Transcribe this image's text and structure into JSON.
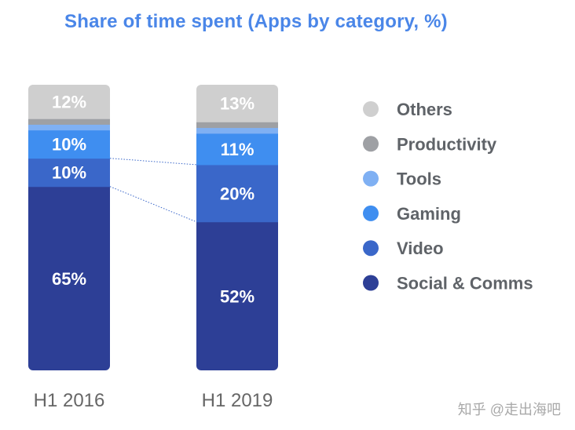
{
  "chart_data": {
    "type": "bar",
    "stacked": true,
    "title": "Share of time spent (Apps by category, %)",
    "categories": [
      "H1 2016",
      "H1 2019"
    ],
    "series": [
      {
        "name": "Social & Comms",
        "values": [
          65,
          52
        ],
        "labels": [
          "65%",
          "52%"
        ],
        "color": "#2d3f96"
      },
      {
        "name": "Video",
        "values": [
          10,
          20
        ],
        "labels": [
          "10%",
          "20%"
        ],
        "color": "#3a67c9"
      },
      {
        "name": "Gaming",
        "values": [
          10,
          11
        ],
        "labels": [
          "10%",
          "11%"
        ],
        "color": "#3f8ef0"
      },
      {
        "name": "Tools",
        "values": [
          2,
          2
        ],
        "labels": [
          "",
          ""
        ],
        "color": "#7fb0f3"
      },
      {
        "name": "Productivity",
        "values": [
          2,
          2
        ],
        "labels": [
          "",
          ""
        ],
        "color": "#9ea0a4"
      },
      {
        "name": "Others",
        "values": [
          12,
          13
        ],
        "labels": [
          "12%",
          "13%"
        ],
        "color": "#cfcfcf"
      }
    ],
    "legend_position": "right",
    "legend_order": [
      "Others",
      "Productivity",
      "Tools",
      "Gaming",
      "Video",
      "Social & Comms"
    ],
    "connectors": true
  },
  "watermark": "知乎 @走出海吧"
}
